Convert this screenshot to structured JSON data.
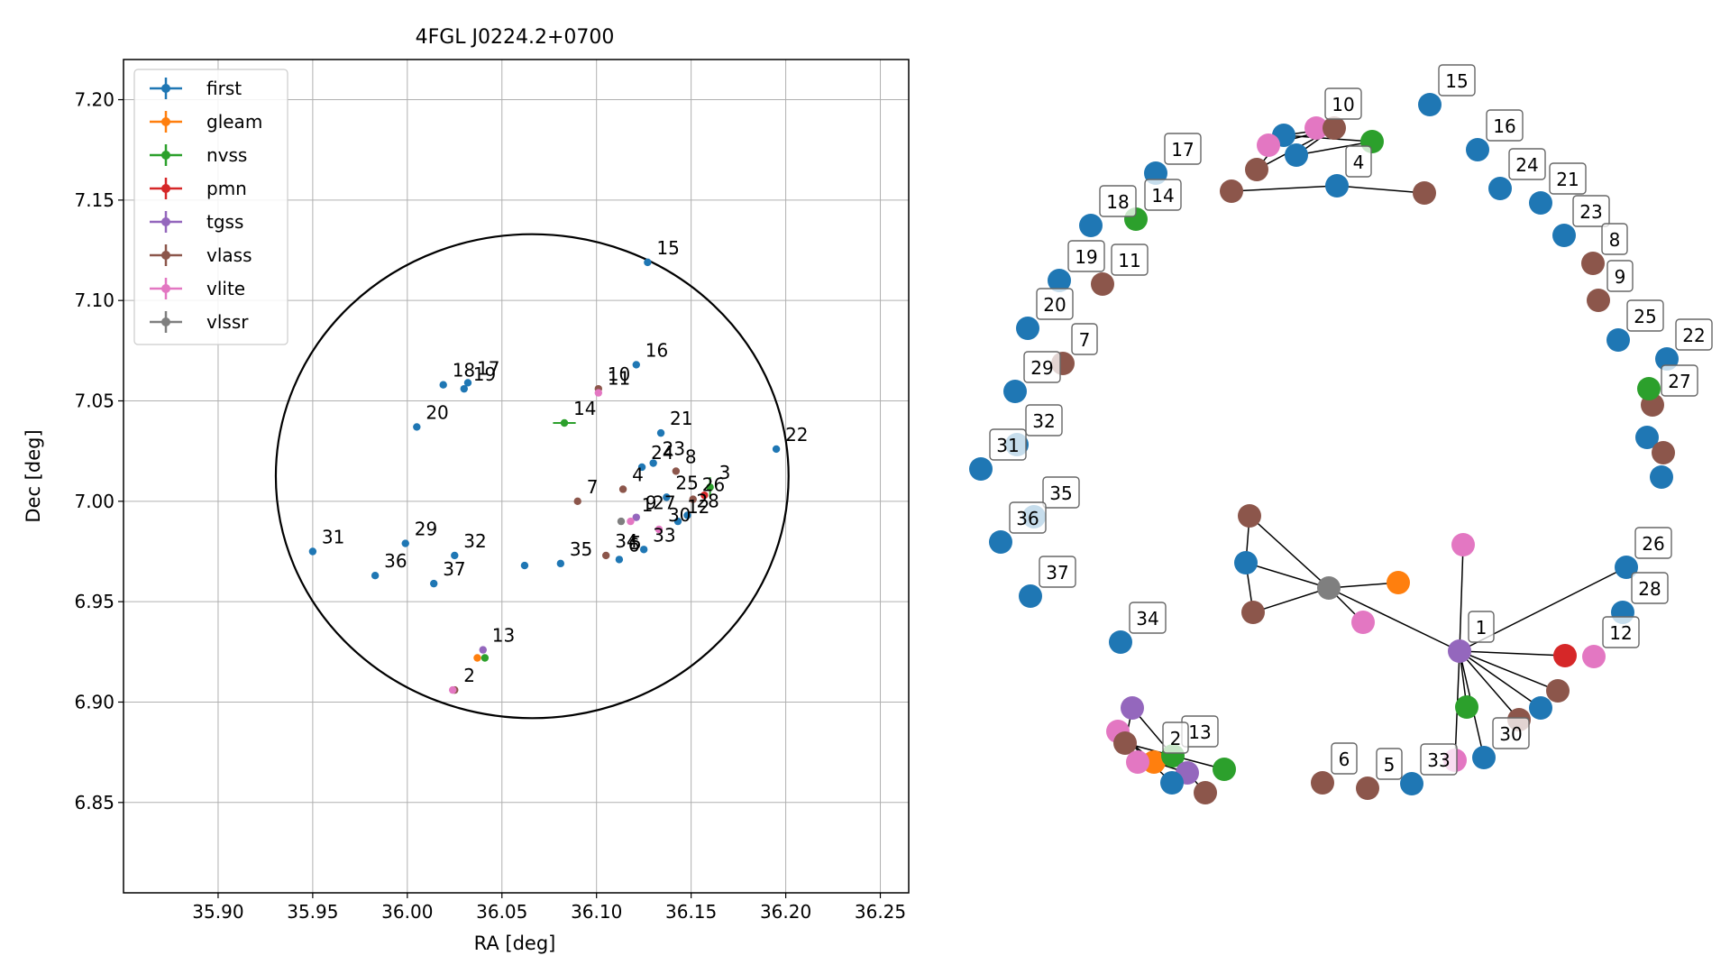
{
  "chart_data": [
    {
      "type": "scatter",
      "title": "4FGL J0224.2+0700",
      "xlabel": "RA [deg]",
      "ylabel": "Dec [deg]",
      "xlim": [
        35.85,
        36.265
      ],
      "ylim": [
        6.805,
        7.22
      ],
      "xticks": [
        "35.90",
        "35.95",
        "36.00",
        "36.05",
        "36.10",
        "36.15",
        "36.20",
        "36.25"
      ],
      "yticks": [
        "6.85",
        "6.90",
        "6.95",
        "7.00",
        "7.05",
        "7.10",
        "7.15",
        "7.20"
      ],
      "grid": true,
      "legend_position": "top-left",
      "ellipse": {
        "center": [
          36.066,
          7.0125
        ],
        "semi_axis_ra": 0.1355,
        "semi_axis_dec": 0.1205
      },
      "series": [
        {
          "name": "first",
          "color": "#1f77b4",
          "points": [
            [
              36.127,
              7.119
            ],
            [
              36.121,
              7.068
            ],
            [
              36.019,
              7.058
            ],
            [
              36.032,
              7.059
            ],
            [
              36.03,
              7.056
            ],
            [
              36.005,
              7.037
            ],
            [
              36.134,
              7.034
            ],
            [
              36.13,
              7.019
            ],
            [
              36.124,
              7.017
            ],
            [
              36.137,
              7.002
            ],
            [
              36.143,
              6.99
            ],
            [
              36.148,
              6.993
            ],
            [
              36.195,
              7.026
            ],
            [
              35.95,
              6.975
            ],
            [
              35.999,
              6.979
            ],
            [
              35.983,
              6.963
            ],
            [
              36.025,
              6.973
            ],
            [
              36.014,
              6.959
            ],
            [
              36.062,
              6.968
            ],
            [
              36.081,
              6.969
            ],
            [
              36.112,
              6.971
            ],
            [
              36.125,
              6.976
            ]
          ]
        },
        {
          "name": "gleam",
          "color": "#ff7f0e",
          "points": [
            [
              36.037,
              6.922
            ]
          ]
        },
        {
          "name": "nvss",
          "color": "#2ca02c",
          "points": [
            [
              36.083,
              7.039
            ],
            [
              36.16,
              7.007
            ],
            [
              36.041,
              6.922
            ]
          ]
        },
        {
          "name": "pmn",
          "color": "#d62728",
          "points": [
            [
              36.157,
              7.003
            ]
          ]
        },
        {
          "name": "tgss",
          "color": "#9467bd",
          "points": [
            [
              36.121,
              6.992
            ],
            [
              36.04,
              6.926
            ]
          ]
        },
        {
          "name": "vlass",
          "color": "#8c564b",
          "points": [
            [
              36.101,
              7.056
            ],
            [
              36.09,
              7.0
            ],
            [
              36.114,
              7.006
            ],
            [
              36.142,
              7.015
            ],
            [
              36.105,
              6.973
            ],
            [
              36.151,
              7.001
            ],
            [
              36.025,
              6.906
            ]
          ]
        },
        {
          "name": "vlite",
          "color": "#e377c2",
          "points": [
            [
              36.101,
              7.054
            ],
            [
              36.118,
              6.99
            ],
            [
              36.133,
              6.986
            ],
            [
              36.024,
              6.906
            ]
          ]
        },
        {
          "name": "vlssr",
          "color": "#7f7f7f",
          "points": [
            [
              36.113,
              6.99
            ]
          ]
        }
      ],
      "point_labels": [
        {
          "text": "15",
          "x": 36.127,
          "y": 7.119
        },
        {
          "text": "16",
          "x": 36.121,
          "y": 7.068
        },
        {
          "text": "18",
          "x": 36.019,
          "y": 7.058
        },
        {
          "text": "17",
          "x": 36.032,
          "y": 7.059
        },
        {
          "text": "19",
          "x": 36.03,
          "y": 7.056
        },
        {
          "text": "10",
          "x": 36.101,
          "y": 7.056
        },
        {
          "text": "11",
          "x": 36.101,
          "y": 7.054
        },
        {
          "text": "20",
          "x": 36.005,
          "y": 7.037
        },
        {
          "text": "14",
          "x": 36.083,
          "y": 7.039
        },
        {
          "text": "21",
          "x": 36.134,
          "y": 7.034
        },
        {
          "text": "23",
          "x": 36.13,
          "y": 7.019
        },
        {
          "text": "24",
          "x": 36.124,
          "y": 7.017
        },
        {
          "text": "8",
          "x": 36.142,
          "y": 7.015
        },
        {
          "text": "22",
          "x": 36.195,
          "y": 7.026
        },
        {
          "text": "3",
          "x": 36.16,
          "y": 7.007
        },
        {
          "text": "7",
          "x": 36.09,
          "y": 7.0
        },
        {
          "text": "4",
          "x": 36.114,
          "y": 7.006
        },
        {
          "text": "25",
          "x": 36.137,
          "y": 7.002
        },
        {
          "text": "26",
          "x": 36.151,
          "y": 7.001
        },
        {
          "text": "28",
          "x": 36.148,
          "y": 6.993
        },
        {
          "text": "12",
          "x": 36.143,
          "y": 6.99
        },
        {
          "text": "1",
          "x": 36.119,
          "y": 6.991
        },
        {
          "text": "9",
          "x": 36.121,
          "y": 6.992
        },
        {
          "text": "27",
          "x": 36.125,
          "y": 6.992
        },
        {
          "text": "30",
          "x": 36.133,
          "y": 6.986
        },
        {
          "text": "6",
          "x": 36.112,
          "y": 6.971
        },
        {
          "text": "5",
          "x": 36.113,
          "y": 6.972
        },
        {
          "text": "33",
          "x": 36.125,
          "y": 6.976
        },
        {
          "text": "34",
          "x": 36.105,
          "y": 6.973
        },
        {
          "text": "35",
          "x": 36.081,
          "y": 6.969
        },
        {
          "text": "31",
          "x": 35.95,
          "y": 6.975
        },
        {
          "text": "29",
          "x": 35.999,
          "y": 6.979
        },
        {
          "text": "36",
          "x": 35.983,
          "y": 6.963
        },
        {
          "text": "32",
          "x": 36.025,
          "y": 6.973
        },
        {
          "text": "37",
          "x": 36.014,
          "y": 6.959
        },
        {
          "text": "13",
          "x": 36.04,
          "y": 6.926
        },
        {
          "text": "2",
          "x": 36.025,
          "y": 6.906
        }
      ]
    },
    {
      "type": "network",
      "colors": {
        "first": "#1f77b4",
        "gleam": "#ff7f0e",
        "nvss": "#2ca02c",
        "pmn": "#d62728",
        "tgss": "#9467bd",
        "vlass": "#8c564b",
        "vlite": "#e377c2",
        "vlssr": "#7f7f7f"
      },
      "node_labels": [
        "15",
        "16",
        "17",
        "10",
        "4",
        "24",
        "21",
        "18",
        "14",
        "23",
        "8",
        "19",
        "11",
        "9",
        "20",
        "7",
        "25",
        "22",
        "29",
        "32",
        "27",
        "31",
        "35",
        "36",
        "26",
        "37",
        "28",
        "12",
        "1",
        "34",
        "30",
        "13",
        "2",
        "6",
        "5",
        "33"
      ]
    }
  ]
}
